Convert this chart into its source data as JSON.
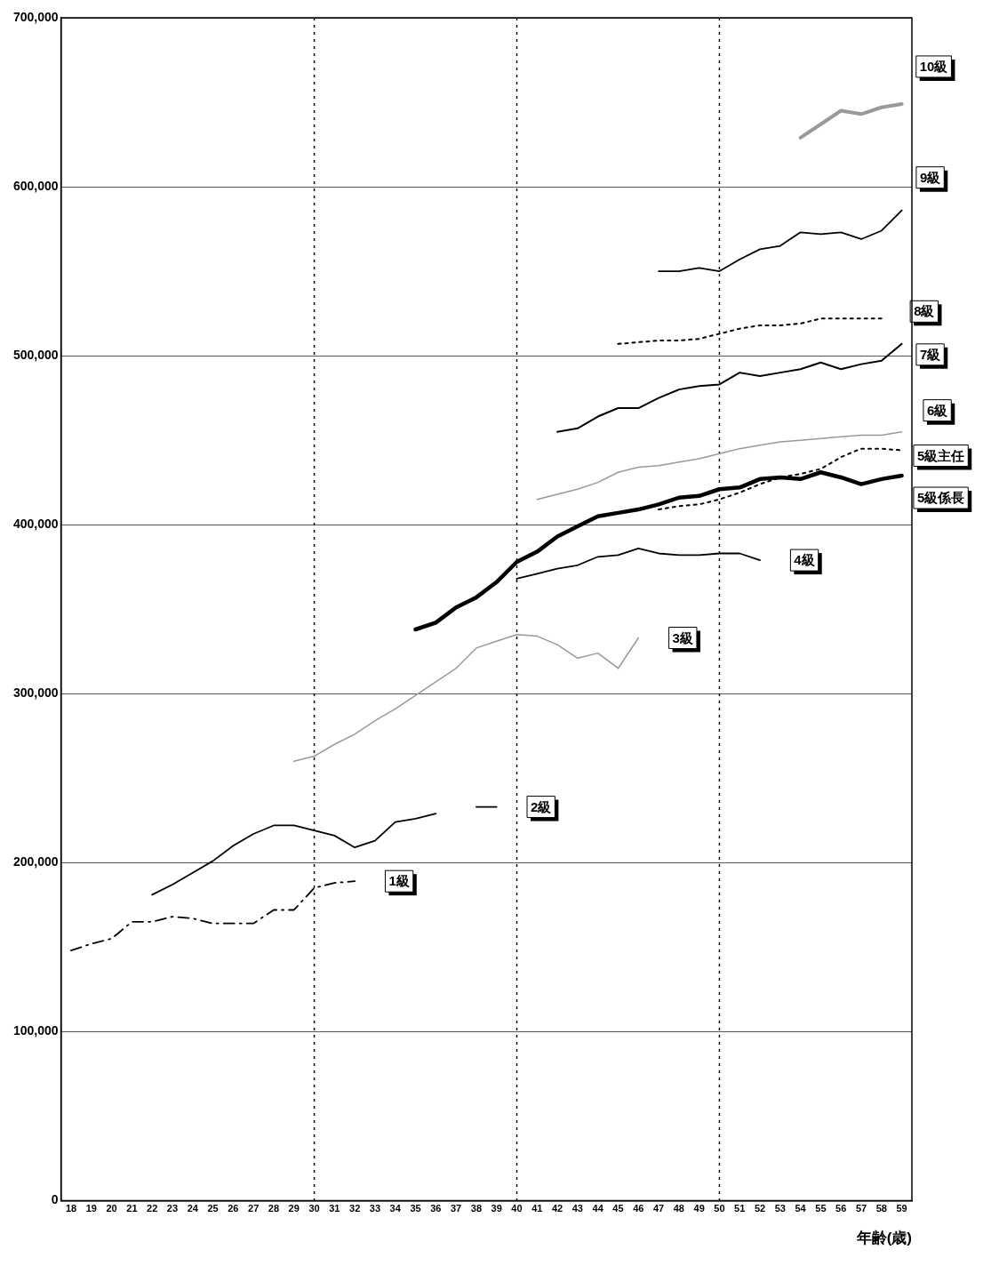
{
  "chart_data": {
    "type": "line",
    "xlabel": "年齢(歳)",
    "xlim": [
      17.5,
      59.5
    ],
    "xticks": [
      18,
      19,
      20,
      21,
      22,
      23,
      24,
      25,
      26,
      27,
      28,
      29,
      30,
      31,
      32,
      33,
      34,
      35,
      36,
      37,
      38,
      39,
      40,
      41,
      42,
      43,
      44,
      45,
      46,
      47,
      48,
      49,
      50,
      51,
      52,
      53,
      54,
      55,
      56,
      57,
      58,
      59
    ],
    "ylim": [
      0,
      700000
    ],
    "yticks": [
      {
        "value": 0,
        "label": "0"
      },
      {
        "value": 100000,
        "label": "100,000"
      },
      {
        "value": 200000,
        "label": "200,000"
      },
      {
        "value": 300000,
        "label": "300,000"
      },
      {
        "value": 400000,
        "label": "400,000"
      },
      {
        "value": 500000,
        "label": "500,000"
      },
      {
        "value": 600000,
        "label": "600,000"
      },
      {
        "value": 700000,
        "label": "700,000"
      }
    ],
    "grid": "y",
    "legend": false,
    "marker": "none",
    "ref_lines": [
      {
        "axis": "x",
        "value": 30,
        "line_style": "dotted",
        "color": "#000000"
      },
      {
        "axis": "x",
        "value": 40,
        "line_style": "dotted",
        "color": "#000000"
      },
      {
        "axis": "x",
        "value": 50,
        "line_style": "dotted",
        "color": "#000000"
      }
    ],
    "series": [
      {
        "name": "1級",
        "color": "#000000",
        "line_style": "dashed",
        "x": [
          18,
          19,
          20,
          21,
          22,
          23,
          24,
          25,
          26,
          27,
          28,
          29,
          30,
          31,
          32
        ],
        "values": [
          148000,
          152000,
          155000,
          165000,
          165000,
          168000,
          167000,
          164000,
          164000,
          164000,
          172000,
          172000,
          185000,
          188000,
          189000
        ]
      },
      {
        "name": "2級",
        "color": "#000000",
        "line_style": "solid",
        "x": [
          22,
          23,
          24,
          25,
          26,
          27,
          28,
          29,
          30,
          31,
          32,
          33,
          34,
          35,
          36,
          37,
          38,
          39
        ],
        "values": [
          181000,
          187000,
          194000,
          201000,
          210000,
          217000,
          222000,
          222000,
          219000,
          216000,
          209000,
          213000,
          224000,
          226000,
          229000,
          null,
          233000,
          233000
        ]
      },
      {
        "name": "3級",
        "color": "#999999",
        "line_style": "solid",
        "x": [
          29,
          30,
          31,
          32,
          33,
          34,
          35,
          36,
          37,
          38,
          39,
          40,
          41,
          42,
          43,
          44,
          45,
          46
        ],
        "values": [
          260000,
          263000,
          270000,
          276000,
          284000,
          291000,
          299000,
          307000,
          315000,
          327000,
          331000,
          335000,
          334000,
          329000,
          321000,
          324000,
          315000,
          333000
        ]
      },
      {
        "name": "4級",
        "color": "#000000",
        "line_style": "solid",
        "x": [
          40,
          41,
          42,
          43,
          44,
          45,
          46,
          47,
          48,
          49,
          50,
          51,
          52
        ],
        "values": [
          368000,
          371000,
          374000,
          376000,
          381000,
          382000,
          386000,
          383000,
          382000,
          382000,
          383000,
          383000,
          379000
        ]
      },
      {
        "name": "5級係長",
        "color": "#000000",
        "line_style": "solid",
        "x": [
          35,
          36,
          37,
          38,
          39,
          40,
          41,
          42,
          43,
          44,
          45,
          46,
          47,
          48,
          49,
          50,
          51,
          52,
          53,
          54,
          55,
          56,
          57,
          58,
          59
        ],
        "values": [
          338000,
          342000,
          351000,
          357000,
          366000,
          378000,
          384000,
          393000,
          399000,
          405000,
          407000,
          409000,
          412000,
          416000,
          417000,
          421000,
          422000,
          427000,
          428000,
          427000,
          431000,
          428000,
          424000,
          427000,
          429000
        ]
      },
      {
        "name": "5級主任",
        "color": "#000000",
        "line_style": "dotted",
        "x": [
          47,
          48,
          49,
          50,
          51,
          52,
          53,
          54,
          55,
          56,
          57,
          58,
          59
        ],
        "values": [
          409000,
          411000,
          412000,
          415000,
          419000,
          424000,
          428000,
          430000,
          433000,
          440000,
          445000,
          445000,
          444000
        ]
      },
      {
        "name": "6級",
        "color": "#999999",
        "line_style": "solid",
        "x": [
          41,
          42,
          43,
          44,
          45,
          46,
          47,
          48,
          49,
          50,
          51,
          52,
          53,
          54,
          55,
          56,
          57,
          58,
          59
        ],
        "values": [
          415000,
          418000,
          421000,
          425000,
          431000,
          434000,
          435000,
          437000,
          439000,
          442000,
          445000,
          447000,
          449000,
          450000,
          451000,
          452000,
          453000,
          453000,
          455000
        ]
      },
      {
        "name": "7級",
        "color": "#000000",
        "line_style": "solid",
        "x": [
          42,
          43,
          44,
          45,
          46,
          47,
          48,
          49,
          50,
          51,
          52,
          53,
          54,
          55,
          56,
          57,
          58,
          59
        ],
        "values": [
          455000,
          457000,
          464000,
          469000,
          469000,
          475000,
          480000,
          482000,
          483000,
          490000,
          488000,
          490000,
          492000,
          496000,
          492000,
          495000,
          497000,
          507000
        ]
      },
      {
        "name": "8級",
        "color": "#000000",
        "line_style": "dotted",
        "x": [
          45,
          46,
          47,
          48,
          49,
          50,
          51,
          52,
          53,
          54,
          55,
          56,
          57,
          58
        ],
        "values": [
          507000,
          508000,
          509000,
          509000,
          510000,
          513000,
          516000,
          518000,
          518000,
          519000,
          522000,
          522000,
          522000,
          522000
        ]
      },
      {
        "name": "9級",
        "color": "#000000",
        "line_style": "solid",
        "x": [
          47,
          48,
          49,
          50,
          51,
          52,
          53,
          54,
          55,
          56,
          57,
          58,
          59
        ],
        "values": [
          550000,
          550000,
          552000,
          550000,
          557000,
          563000,
          565000,
          573000,
          572000,
          573000,
          569000,
          574000,
          586000
        ]
      },
      {
        "name": "10級",
        "color": "#999999",
        "line_style": "solid",
        "x": [
          54,
          55,
          56,
          57,
          58,
          59
        ],
        "values": [
          629000,
          637000,
          645000,
          643000,
          647000,
          649000
        ]
      }
    ]
  }
}
